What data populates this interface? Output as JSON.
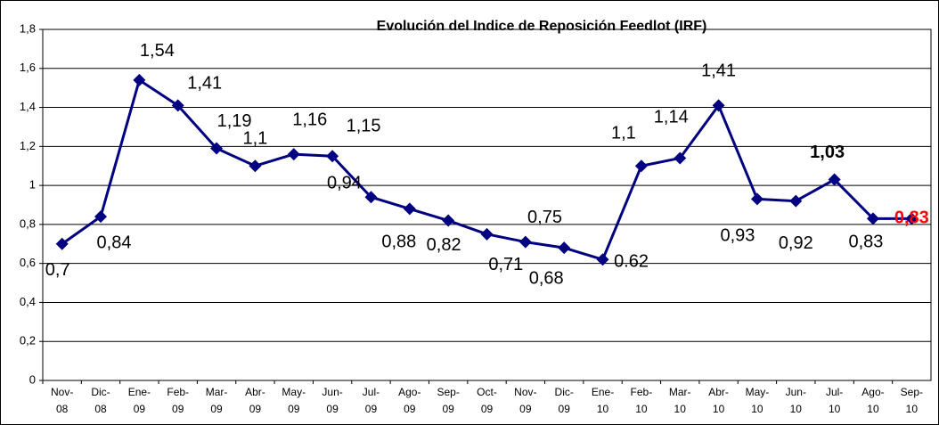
{
  "chart_data": {
    "type": "line",
    "title": "Evolución del Indice de Reposición Feedlot (IRF)",
    "categories": [
      "Nov-08",
      "Dic-08",
      "Ene-09",
      "Feb-09",
      "Mar-09",
      "Abr-09",
      "May-09",
      "Jun-09",
      "Jul-09",
      "Ago-09",
      "Sep-09",
      "Oct-09",
      "Nov-09",
      "Dic-09",
      "Ene-10",
      "Feb-10",
      "Mar-10",
      "Abr-10",
      "May-10",
      "Jun-10",
      "Jul-10",
      "Ago-10",
      "Sep-10"
    ],
    "values": [
      0.7,
      0.84,
      1.54,
      1.41,
      1.19,
      1.1,
      1.16,
      1.15,
      0.94,
      0.88,
      0.82,
      0.75,
      0.71,
      0.68,
      0.62,
      1.1,
      1.14,
      1.41,
      0.93,
      0.92,
      1.03,
      0.83,
      0.83
    ],
    "value_labels": [
      "0,7",
      "0,84",
      "1,54",
      "1,41",
      "1,19",
      "1,1",
      "1,16",
      "1,15",
      "0,94",
      "0,88",
      "0,82",
      "0,75",
      "0,71",
      "0,68",
      "0.62",
      "1,1",
      "1,14",
      "1,41",
      "0,93",
      "0,92",
      "1,03",
      "0,83",
      "0,83"
    ],
    "color": "#000080",
    "ylim": [
      0,
      1.8
    ],
    "yticks": [
      0,
      {
        "value": 0.2,
        "label": "0,2"
      },
      {
        "value": 0.4,
        "label": "0,4"
      },
      {
        "value": 0.6,
        "label": "0,6"
      },
      {
        "value": 0.8,
        "label": "0,8"
      },
      1,
      {
        "value": 1.2,
        "label": "1,2"
      },
      {
        "value": 1.4,
        "label": "1,4"
      },
      {
        "value": 1.6,
        "label": "1,6"
      },
      {
        "value": 1.8,
        "label": "1,8"
      }
    ],
    "grid": true
  }
}
